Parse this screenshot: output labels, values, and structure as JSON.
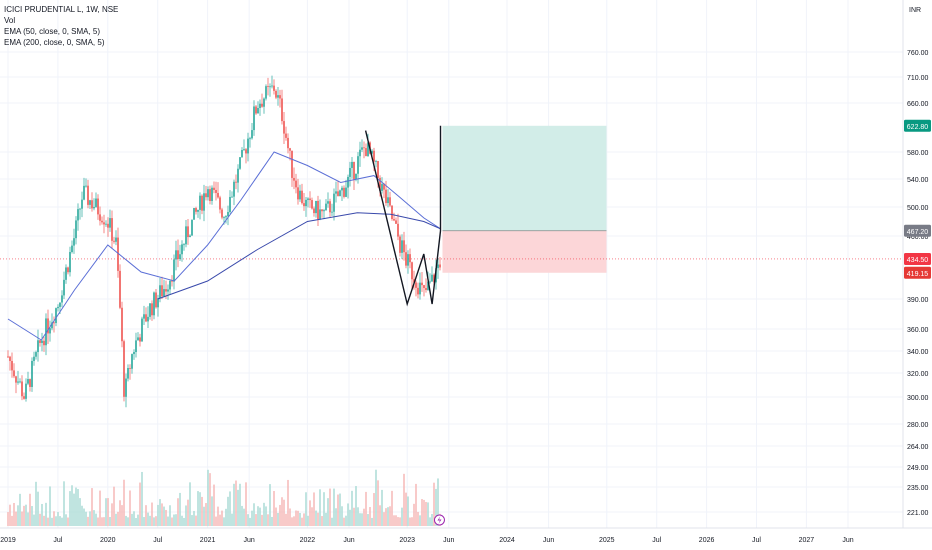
{
  "header": {
    "symbol": "ICICI PRUDENTIAL L, 1W, NSE",
    "indicators": [
      "Vol",
      "EMA (50, close, 0, SMA, 5)",
      "EMA (200, close, 0, SMA, 5)"
    ],
    "currency": "INR"
  },
  "colors": {
    "up": "#26a69a",
    "down": "#ef5350",
    "ema50": "#5b6fd6",
    "ema200": "#3949ab",
    "profit_zone": "#d2ede8",
    "loss_zone": "#fcd6d8",
    "badge_green": "#089981",
    "badge_grey": "#787b86",
    "badge_red": "#f23645",
    "badge_red2": "#e53935"
  },
  "chart_data": {
    "type": "candlestick",
    "y_axis_ticks": [
      "760.00",
      "710.00",
      "660.00",
      "580.00",
      "540.00",
      "500.00",
      "460.00",
      "390.00",
      "360.00",
      "340.00",
      "320.00",
      "300.00",
      "280.00",
      "264.00",
      "249.00",
      "235.00",
      "221.00"
    ],
    "x_axis_ticks": [
      "2019",
      "Jul",
      "2020",
      "Jul",
      "2021",
      "Jun",
      "2022",
      "Jun",
      "2023",
      "Jun",
      "2024",
      "Jun",
      "2025",
      "Jul",
      "2026",
      "Jul",
      "2027",
      "Jun"
    ],
    "price_labels": [
      {
        "value": "622.80",
        "kind": "target"
      },
      {
        "value": "467.20",
        "kind": "entry"
      },
      {
        "value": "434.50",
        "kind": "last"
      },
      {
        "value": "419.15",
        "kind": "stop"
      }
    ],
    "ohlc_close_path": [
      [
        "2019-01",
        335
      ],
      [
        "2019-03",
        300
      ],
      [
        "2019-05",
        350
      ],
      [
        "2019-07",
        385
      ],
      [
        "2019-09",
        460
      ],
      [
        "2019-10",
        520
      ],
      [
        "2019-12",
        495
      ],
      [
        "2020-01",
        480
      ],
      [
        "2020-02",
        450
      ],
      [
        "2020-03",
        300
      ],
      [
        "2020-04",
        340
      ],
      [
        "2020-06",
        380
      ],
      [
        "2020-08",
        405
      ],
      [
        "2020-10",
        450
      ],
      [
        "2020-12",
        500
      ],
      [
        "2021-01",
        530
      ],
      [
        "2021-03",
        490
      ],
      [
        "2021-05",
        560
      ],
      [
        "2021-07",
        660
      ],
      [
        "2021-09",
        690
      ],
      [
        "2021-10",
        640
      ],
      [
        "2021-11",
        560
      ],
      [
        "2021-12",
        520
      ],
      [
        "2022-01",
        500
      ],
      [
        "2022-03",
        490
      ],
      [
        "2022-05",
        520
      ],
      [
        "2022-06",
        540
      ],
      [
        "2022-08",
        590
      ],
      [
        "2022-09",
        560
      ],
      [
        "2022-11",
        490
      ],
      [
        "2022-12",
        455
      ],
      [
        "2023-01",
        430
      ],
      [
        "2023-03",
        395
      ],
      [
        "2023-04",
        410
      ],
      [
        "2023-05",
        434.5
      ]
    ],
    "ema50": [
      [
        "2019-01",
        370
      ],
      [
        "2019-05",
        350
      ],
      [
        "2019-09",
        400
      ],
      [
        "2020-01",
        450
      ],
      [
        "2020-05",
        420
      ],
      [
        "2020-09",
        410
      ],
      [
        "2021-01",
        450
      ],
      [
        "2021-05",
        510
      ],
      [
        "2021-09",
        580
      ],
      [
        "2022-01",
        560
      ],
      [
        "2022-05",
        535
      ],
      [
        "2022-09",
        545
      ],
      [
        "2022-12",
        515
      ],
      [
        "2023-03",
        485
      ],
      [
        "2023-05",
        470
      ]
    ],
    "ema200": [
      [
        "2020-07",
        390
      ],
      [
        "2021-01",
        410
      ],
      [
        "2021-07",
        445
      ],
      [
        "2022-01",
        480
      ],
      [
        "2022-07",
        492
      ],
      [
        "2022-11",
        490
      ],
      [
        "2023-03",
        480
      ],
      [
        "2023-05",
        470
      ]
    ],
    "pattern_lines": [
      [
        [
          "2022-08",
          615
        ],
        [
          "2023-01",
          385
        ],
        [
          "2023-03",
          440
        ],
        [
          "2023-04",
          385
        ],
        [
          "2023-05",
          467.2
        ],
        [
          "2023-05",
          622.8
        ]
      ]
    ],
    "position": {
      "entry": 467.2,
      "target": 622.8,
      "stop": 419.15,
      "from": "2023-05",
      "to": "2024-12"
    },
    "volume_bars_visible": true,
    "grid": true
  }
}
